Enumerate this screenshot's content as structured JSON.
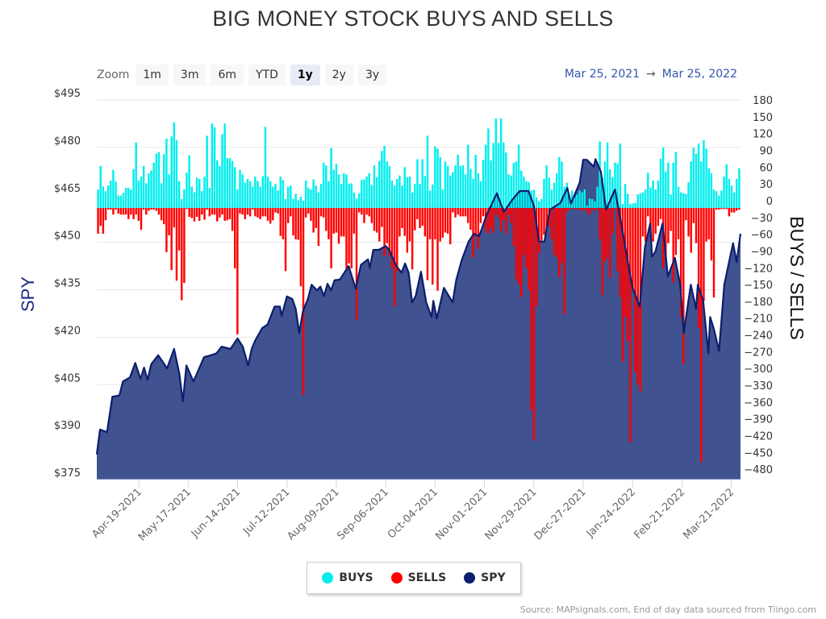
{
  "chart_data": {
    "type": "bar+area",
    "title": "BIG MONEY STOCK BUYS AND SELLS",
    "zoom": {
      "label": "Zoom",
      "buttons": [
        "1m",
        "3m",
        "6m",
        "YTD",
        "1y",
        "2y",
        "3y"
      ],
      "active": "1y"
    },
    "range": {
      "from": "Mar 25, 2021",
      "arrow": "→",
      "to": "Mar 25, 2022"
    },
    "x_start": "2021-03-25",
    "x_end": "2022-03-25",
    "x_ticks": [
      "Apr-19-2021",
      "May-17-2021",
      "Jun-14-2021",
      "Jul-12-2021",
      "Aug-09-2021",
      "Sep-06-2021",
      "Oct-04-2021",
      "Nov-01-2021",
      "Nov-29-2021",
      "Dec-27-2021",
      "Jan-24-2022",
      "Feb-21-2022",
      "Mar-21-2022"
    ],
    "y_left": {
      "label": "SPY",
      "range": [
        375,
        495
      ],
      "ticks": [
        "$495",
        "$480",
        "$465",
        "$450",
        "$435",
        "$420",
        "$405",
        "$390",
        "$375"
      ],
      "tick_values": [
        495,
        480,
        465,
        450,
        435,
        420,
        405,
        390,
        375
      ]
    },
    "y_right": {
      "label": "BUYS / SELLS",
      "ticks": [
        180,
        150,
        120,
        90,
        60,
        30,
        0,
        -30,
        -60,
        -90,
        -120,
        -150,
        -180,
        -210,
        -240,
        -270,
        -300,
        -330,
        -360,
        -390,
        -420,
        -450,
        -480
      ]
    },
    "grid": true,
    "legend_position": "bottom",
    "legend": [
      {
        "name": "BUYS",
        "color": "#00eeee"
      },
      {
        "name": "SELLS",
        "color": "#ff0000"
      },
      {
        "name": "SPY",
        "color": "#0c1e6e"
      }
    ],
    "colors": {
      "buys": "#00eeee",
      "sells": "#ff0000",
      "spy_line": "#0c1e6e",
      "spy_area": "#40528f"
    },
    "spy": [
      [
        "2021-03-26",
        383
      ],
      [
        "2021-03-28",
        390.8
      ],
      [
        "2021-04-01",
        390
      ],
      [
        "2021-04-04",
        401.2
      ],
      [
        "2021-04-08",
        401.6
      ],
      [
        "2021-04-10",
        406
      ],
      [
        "2021-04-14",
        407.3
      ],
      [
        "2021-04-17",
        411.9
      ],
      [
        "2021-04-20",
        406.8
      ],
      [
        "2021-04-22",
        410.4
      ],
      [
        "2021-04-24",
        406.5
      ],
      [
        "2021-04-26",
        411.4
      ],
      [
        "2021-04-30",
        414.3
      ],
      [
        "2021-05-03",
        411.9
      ],
      [
        "2021-05-05",
        410.1
      ],
      [
        "2021-05-09",
        416.3
      ],
      [
        "2021-05-12",
        408.5
      ],
      [
        "2021-05-14",
        399.7
      ],
      [
        "2021-05-16",
        411.1
      ],
      [
        "2021-05-20",
        406
      ],
      [
        "2021-05-26",
        413.7
      ],
      [
        "2021-05-30",
        414.3
      ],
      [
        "2021-06-02",
        414.9
      ],
      [
        "2021-06-05",
        417
      ],
      [
        "2021-06-10",
        416.3
      ],
      [
        "2021-06-14",
        419.6
      ],
      [
        "2021-06-17",
        417
      ],
      [
        "2021-06-20",
        411.1
      ],
      [
        "2021-06-22",
        416.3
      ],
      [
        "2021-06-24",
        419
      ],
      [
        "2021-06-28",
        422.9
      ],
      [
        "2021-07-01",
        424
      ],
      [
        "2021-07-05",
        429.7
      ],
      [
        "2021-07-08",
        429.7
      ],
      [
        "2021-07-09",
        426.7
      ],
      [
        "2021-07-12",
        432.9
      ],
      [
        "2021-07-15",
        432.1
      ],
      [
        "2021-07-17",
        429
      ],
      [
        "2021-07-19",
        421.3
      ],
      [
        "2021-07-21",
        428
      ],
      [
        "2021-07-24",
        432.3
      ],
      [
        "2021-07-26",
        436.6
      ],
      [
        "2021-07-29",
        434.8
      ],
      [
        "2021-07-31",
        436
      ],
      [
        "2021-08-02",
        433
      ],
      [
        "2021-08-04",
        436.9
      ],
      [
        "2021-08-06",
        434.8
      ],
      [
        "2021-08-08",
        438
      ],
      [
        "2021-08-11",
        438.2
      ],
      [
        "2021-08-16",
        442.5
      ],
      [
        "2021-08-20",
        435.3
      ],
      [
        "2021-08-23",
        442.9
      ],
      [
        "2021-08-27",
        444.6
      ],
      [
        "2021-08-28",
        441.9
      ],
      [
        "2021-08-30",
        447.6
      ],
      [
        "2021-09-02",
        447.6
      ],
      [
        "2021-09-06",
        448.8
      ],
      [
        "2021-09-08",
        447.6
      ],
      [
        "2021-09-12",
        442.5
      ],
      [
        "2021-09-15",
        440.4
      ],
      [
        "2021-09-17",
        443.3
      ],
      [
        "2021-09-19",
        440.4
      ],
      [
        "2021-09-21",
        431
      ],
      [
        "2021-09-23",
        433
      ],
      [
        "2021-09-26",
        440.7
      ],
      [
        "2021-09-29",
        431
      ],
      [
        "2021-10-02",
        426.4
      ],
      [
        "2021-10-03",
        431.5
      ],
      [
        "2021-10-05",
        425.9
      ],
      [
        "2021-10-09",
        435.6
      ],
      [
        "2021-10-14",
        431
      ],
      [
        "2021-10-16",
        438.1
      ],
      [
        "2021-10-19",
        444.2
      ],
      [
        "2021-10-23",
        450.2
      ],
      [
        "2021-10-26",
        452.7
      ],
      [
        "2021-10-29",
        451.9
      ],
      [
        "2021-11-02",
        458.3
      ],
      [
        "2021-11-08",
        465.5
      ],
      [
        "2021-11-12",
        459.6
      ],
      [
        "2021-11-17",
        463.6
      ],
      [
        "2021-11-21",
        466.2
      ],
      [
        "2021-11-26",
        466.2
      ],
      [
        "2021-11-29",
        461.6
      ],
      [
        "2021-12-02",
        450.2
      ],
      [
        "2021-12-05",
        450.2
      ],
      [
        "2021-12-08",
        460.3
      ],
      [
        "2021-12-14",
        462.4
      ],
      [
        "2021-12-18",
        467.2
      ],
      [
        "2021-12-20",
        462.2
      ],
      [
        "2021-12-25",
        468.8
      ],
      [
        "2021-12-27",
        476.1
      ],
      [
        "2021-12-29",
        476.1
      ],
      [
        "2022-01-02",
        473.9
      ],
      [
        "2022-01-03",
        476.3
      ],
      [
        "2022-01-06",
        472.3
      ],
      [
        "2022-01-09",
        460.3
      ],
      [
        "2022-01-14",
        466.7
      ],
      [
        "2022-01-18",
        454.5
      ],
      [
        "2022-01-22",
        441.7
      ],
      [
        "2022-01-24",
        435.6
      ],
      [
        "2022-01-28",
        429.7
      ],
      [
        "2022-01-31",
        448.4
      ],
      [
        "2022-02-03",
        456
      ],
      [
        "2022-02-04",
        445.5
      ],
      [
        "2022-02-06",
        447.1
      ],
      [
        "2022-02-10",
        456
      ],
      [
        "2022-02-13",
        439.2
      ],
      [
        "2022-02-17",
        445.1
      ],
      [
        "2022-02-20",
        436.6
      ],
      [
        "2022-02-22",
        421.3
      ],
      [
        "2022-02-26",
        436.6
      ],
      [
        "2022-03-01",
        429
      ],
      [
        "2022-03-02",
        436.6
      ],
      [
        "2022-03-05",
        431.5
      ],
      [
        "2022-03-08",
        414.9
      ],
      [
        "2022-03-09",
        426.4
      ],
      [
        "2022-03-11",
        422.8
      ],
      [
        "2022-03-14",
        415.7
      ],
      [
        "2022-03-17",
        436.6
      ],
      [
        "2022-03-20",
        444.6
      ],
      [
        "2022-03-22",
        449.7
      ],
      [
        "2022-03-24",
        443.8
      ],
      [
        "2022-03-25",
        452.7
      ]
    ],
    "buys": [
      33,
      75,
      38,
      30,
      40,
      49,
      68,
      47,
      22,
      22,
      27,
      36,
      36,
      33,
      69,
      117,
      49,
      56,
      75,
      44,
      62,
      67,
      81,
      97,
      100,
      44,
      96,
      124,
      60,
      128,
      153,
      121,
      48,
      16,
      33,
      63,
      94,
      38,
      28,
      54,
      52,
      30,
      56,
      129,
      36,
      151,
      144,
      85,
      75,
      132,
      151,
      89,
      89,
      84,
      73,
      33,
      68,
      60,
      45,
      52,
      48,
      38,
      56,
      48,
      38,
      57,
      145,
      56,
      48,
      38,
      43,
      31,
      56,
      50,
      16,
      38,
      40,
      16,
      25,
      14,
      20,
      13,
      49,
      36,
      33,
      51,
      40,
      28,
      43,
      81,
      76,
      48,
      107,
      68,
      79,
      60,
      43,
      62,
      60,
      43,
      44,
      28,
      17,
      26,
      50,
      51,
      56,
      62,
      41,
      76,
      55,
      84,
      102,
      111,
      83,
      75,
      49,
      40,
      52,
      58,
      40,
      73,
      55,
      56,
      28,
      43,
      87,
      43,
      87,
      57,
      129,
      31,
      42,
      110,
      106,
      91,
      33,
      83,
      75,
      58,
      64,
      76,
      95,
      75,
      76,
      60,
      113,
      70,
      52,
      95,
      62,
      48,
      86,
      113,
      142,
      85,
      116,
      160,
      116,
      160,
      117,
      99,
      60,
      58,
      81,
      83,
      113,
      67,
      56,
      48,
      46,
      31,
      33,
      19,
      12,
      16,
      52,
      76,
      54,
      33,
      45,
      62,
      91,
      83,
      38,
      45,
      22,
      31,
      19,
      24,
      31,
      28,
      33,
      4,
      17,
      16,
      12,
      38,
      119,
      54,
      83,
      117,
      69,
      55,
      81,
      79,
      115,
      7,
      43,
      25,
      7,
      8,
      9,
      24,
      26,
      28,
      33,
      63,
      36,
      49,
      33,
      49,
      88,
      108,
      65,
      81,
      24,
      81,
      100,
      38,
      28,
      26,
      25,
      46,
      83,
      108,
      97,
      115,
      83,
      121,
      106,
      71,
      62,
      33,
      30,
      22,
      31,
      56,
      78,
      52,
      40,
      28,
      52,
      71
    ],
    "sells": [
      -46,
      -32,
      -46,
      -22,
      -3,
      -3,
      -12,
      -3,
      -10,
      -12,
      -12,
      -12,
      -20,
      -12,
      -20,
      -12,
      -23,
      -39,
      -3,
      -12,
      -5,
      -3,
      -3,
      -5,
      -12,
      -22,
      -29,
      -79,
      -49,
      -111,
      -35,
      -130,
      -76,
      -165,
      -134,
      -2,
      -16,
      -18,
      -24,
      -16,
      -23,
      -12,
      -21,
      -3,
      -15,
      -12,
      -12,
      -24,
      -17,
      -12,
      -23,
      -22,
      -20,
      -41,
      -108,
      -226,
      -10,
      -12,
      -20,
      -12,
      -15,
      -3,
      -15,
      -17,
      -20,
      -15,
      -15,
      -23,
      -28,
      -22,
      -8,
      -10,
      -50,
      -56,
      -113,
      -27,
      -15,
      -49,
      -56,
      -57,
      -140,
      -335,
      -17,
      -10,
      -23,
      -44,
      -36,
      -68,
      -15,
      -17,
      -41,
      -56,
      -108,
      -46,
      -44,
      -64,
      -51,
      -51,
      -108,
      -99,
      -108,
      -46,
      -200,
      -8,
      -12,
      -27,
      -12,
      -15,
      -27,
      -41,
      -44,
      -60,
      -34,
      -86,
      -63,
      -86,
      -108,
      -176,
      -113,
      -51,
      -36,
      -50,
      -80,
      -60,
      -110,
      -40,
      -20,
      -36,
      -32,
      -51,
      -129,
      -56,
      -137,
      -56,
      -148,
      -60,
      -53,
      -44,
      -46,
      -65,
      -8,
      -17,
      -12,
      -15,
      -15,
      -15,
      -27,
      -39,
      -89,
      -51,
      -73,
      -27,
      -15,
      -41,
      -46,
      -36,
      -44,
      -12,
      -17,
      -41,
      -22,
      -46,
      -12,
      -27,
      -68,
      -128,
      -137,
      -159,
      -84,
      -108,
      -147,
      -362,
      -416,
      -176,
      -80,
      -60,
      -48,
      -36,
      -32,
      -56,
      -84,
      -89,
      -123,
      -99,
      -190,
      -8,
      -3,
      -2,
      -2,
      -2,
      -3,
      -5,
      -3,
      -8,
      -12,
      -3,
      -5,
      -2,
      -56,
      -156,
      -96,
      -89,
      -125,
      -46,
      -3,
      -113,
      -159,
      -275,
      -195,
      -238,
      -419,
      -147,
      -294,
      -316,
      -328,
      -51,
      -60,
      -15,
      -41,
      -60,
      -46,
      -32,
      -20,
      -108,
      -94,
      -63,
      -41,
      -133,
      -84,
      -56,
      -195,
      -279,
      -22,
      -51,
      -80,
      -27,
      -63,
      -214,
      -454,
      -166,
      -60,
      -56,
      -94,
      -160,
      -3,
      -3,
      -2,
      -2,
      -2,
      -15,
      -8,
      -8,
      -5,
      -3
    ],
    "source": "Source: MAPsignals.com, End of day data sourced from Tiingo.com"
  }
}
